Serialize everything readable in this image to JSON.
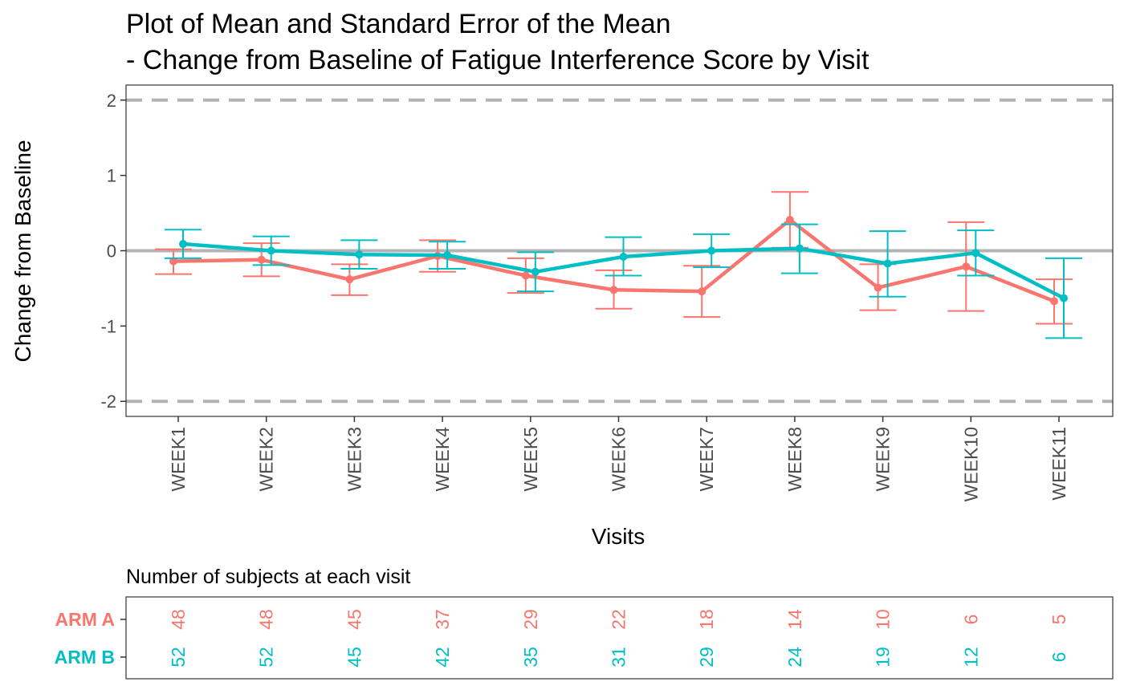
{
  "chart_data": {
    "type": "line",
    "title_line1": "Plot of Mean and Standard Error of the Mean",
    "title_line2": "- Change from Baseline of Fatigue Interference Score by Visit",
    "xlabel": "Visits",
    "ylabel": "Change from Baseline",
    "categories": [
      "WEEK1",
      "WEEK2",
      "WEEK3",
      "WEEK4",
      "WEEK5",
      "WEEK6",
      "WEEK7",
      "WEEK8",
      "WEEK9",
      "WEEK10",
      "WEEK11"
    ],
    "ylim": [
      -2.2,
      2.2
    ],
    "yticks": [
      -2,
      -1,
      0,
      1,
      2
    ],
    "ytick_labels": [
      "-2",
      "-1",
      "0",
      "1",
      "2"
    ],
    "reference_lines": [
      {
        "y": 2,
        "style": "dashed",
        "color": "#b3b3b3"
      },
      {
        "y": 0,
        "style": "solid",
        "color": "#b3b3b3"
      },
      {
        "y": -2,
        "style": "dashed",
        "color": "#b3b3b3"
      }
    ],
    "series": [
      {
        "name": "ARM A",
        "color": "#F8766D",
        "mean": [
          -0.14,
          -0.12,
          -0.38,
          -0.07,
          -0.33,
          -0.52,
          -0.54,
          0.41,
          -0.49,
          -0.21,
          -0.67
        ],
        "lower": [
          -0.31,
          -0.34,
          -0.59,
          -0.28,
          -0.56,
          -0.77,
          -0.88,
          0.04,
          -0.79,
          -0.8,
          -0.97
        ],
        "upper": [
          0.02,
          0.1,
          -0.18,
          0.14,
          -0.1,
          -0.26,
          -0.2,
          0.78,
          -0.18,
          0.38,
          -0.38
        ]
      },
      {
        "name": "ARM B",
        "color": "#00BFC4",
        "mean": [
          0.09,
          0.0,
          -0.05,
          -0.06,
          -0.28,
          -0.08,
          0.0,
          0.03,
          -0.17,
          -0.03,
          -0.63
        ],
        "lower": [
          -0.1,
          -0.19,
          -0.24,
          -0.24,
          -0.54,
          -0.33,
          -0.22,
          -0.3,
          -0.61,
          -0.33,
          -1.16
        ],
        "upper": [
          0.28,
          0.19,
          0.14,
          0.12,
          -0.02,
          0.18,
          0.22,
          0.35,
          0.26,
          0.27,
          -0.1
        ]
      }
    ]
  },
  "risk_table": {
    "title": "Number of subjects at each visit",
    "rows": [
      {
        "label": "ARM A",
        "color": "#F8766D",
        "values": [
          "48",
          "48",
          "45",
          "37",
          "29",
          "22",
          "18",
          "14",
          "10",
          "6",
          "5"
        ]
      },
      {
        "label": "ARM B",
        "color": "#00BFC4",
        "values": [
          "52",
          "52",
          "45",
          "42",
          "35",
          "31",
          "29",
          "24",
          "19",
          "12",
          "6"
        ]
      }
    ]
  }
}
